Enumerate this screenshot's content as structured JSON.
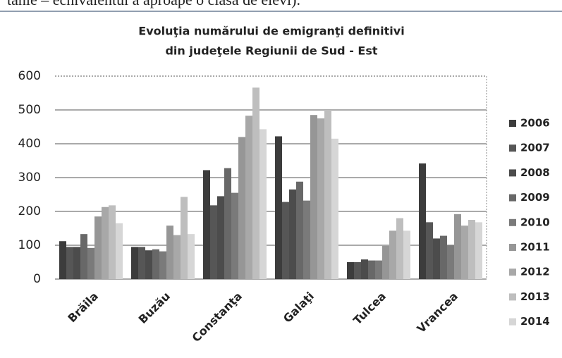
{
  "page_text": "tanie – echivalentul a aproape o clasă de elevi).",
  "chart_data": {
    "type": "bar",
    "title": [
      "Evoluţia numărului de emigranţi definitivi",
      "din judeţele Regiunii de Sud - Est"
    ],
    "categories": [
      "Brăila",
      "Buzău",
      "Constanţa",
      "Galaţi",
      "Tulcea",
      "Vrancea"
    ],
    "series": [
      {
        "name": "2006",
        "color": "#3c3c3c",
        "values": [
          112,
          95,
          322,
          422,
          50,
          342
        ]
      },
      {
        "name": "2007",
        "color": "#565656",
        "values": [
          95,
          95,
          218,
          228,
          50,
          168
        ]
      },
      {
        "name": "2008",
        "color": "#4c4c4c",
        "values": [
          95,
          85,
          245,
          265,
          58,
          120
        ]
      },
      {
        "name": "2009",
        "color": "#686868",
        "values": [
          133,
          88,
          328,
          288,
          55,
          128
        ]
      },
      {
        "name": "2010",
        "color": "#7a7a7a",
        "values": [
          92,
          82,
          255,
          232,
          55,
          100
        ]
      },
      {
        "name": "2011",
        "color": "#969696",
        "values": [
          185,
          158,
          420,
          485,
          98,
          192
        ]
      },
      {
        "name": "2012",
        "color": "#a8a8a8",
        "values": [
          213,
          130,
          483,
          475,
          143,
          158
        ]
      },
      {
        "name": "2013",
        "color": "#bebebe",
        "values": [
          218,
          243,
          566,
          500,
          180,
          175
        ]
      },
      {
        "name": "2014",
        "color": "#d6d6d6",
        "values": [
          165,
          133,
          443,
          415,
          143,
          168
        ]
      }
    ],
    "ylim": [
      0,
      600
    ],
    "yticks": [
      0,
      100,
      200,
      300,
      400,
      500,
      600
    ],
    "grid": true,
    "legend": "right"
  }
}
